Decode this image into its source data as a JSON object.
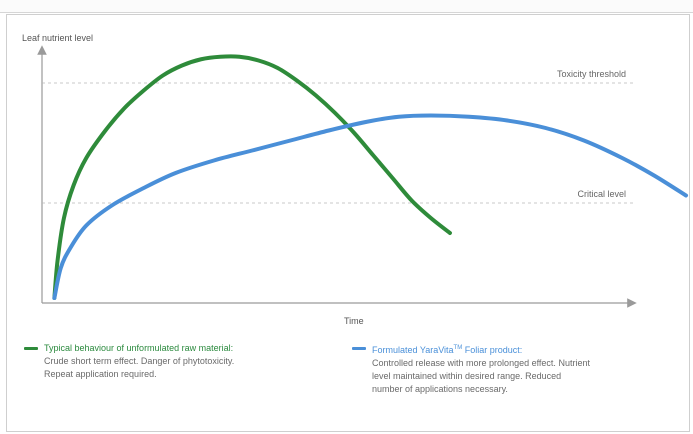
{
  "chart_data": {
    "type": "line",
    "ylabel": "Leaf nutrient level",
    "xlabel": "Time",
    "xlim": [
      0,
      100
    ],
    "ylim": [
      0,
      100
    ],
    "reference_lines": [
      {
        "label": "Toxicity threshold",
        "y": 86
      },
      {
        "label": "Critical level",
        "y": 38
      }
    ],
    "series": [
      {
        "name": "Typical behaviour of unformulated raw material:",
        "color": "#2e8b3a",
        "points": [
          [
            1,
            0
          ],
          [
            1.5,
            15
          ],
          [
            2.5,
            32
          ],
          [
            4,
            45
          ],
          [
            6,
            56
          ],
          [
            9,
            67
          ],
          [
            12,
            76
          ],
          [
            15,
            83
          ],
          [
            18,
            89
          ],
          [
            21,
            93
          ],
          [
            24,
            95.5
          ],
          [
            27,
            96.5
          ],
          [
            30,
            96.5
          ],
          [
            33,
            95
          ],
          [
            36,
            92
          ],
          [
            39,
            87
          ],
          [
            42,
            81
          ],
          [
            45,
            74
          ],
          [
            48,
            66
          ],
          [
            51,
            57
          ],
          [
            54,
            48
          ],
          [
            57,
            39
          ],
          [
            60,
            32
          ],
          [
            63,
            26
          ]
        ]
      },
      {
        "name": "Formulated YaraVita Foliar product:",
        "color": "#4a8fd8",
        "points": [
          [
            1,
            0
          ],
          [
            2,
            12
          ],
          [
            3.5,
            20
          ],
          [
            6,
            29
          ],
          [
            10,
            37
          ],
          [
            15,
            44
          ],
          [
            20,
            50
          ],
          [
            26,
            55
          ],
          [
            32,
            59
          ],
          [
            38,
            63
          ],
          [
            44,
            67
          ],
          [
            50,
            70.5
          ],
          [
            55,
            72.5
          ],
          [
            60,
            73
          ],
          [
            66,
            72.5
          ],
          [
            72,
            71
          ],
          [
            78,
            68
          ],
          [
            84,
            63
          ],
          [
            90,
            56
          ],
          [
            95,
            49
          ],
          [
            100,
            41
          ]
        ]
      }
    ],
    "legend": [
      {
        "title": "Typical behaviour of unformulated raw material:",
        "lines": [
          "Crude short term effect.  Danger of phytotoxicity.",
          "Repeat application required."
        ]
      },
      {
        "title": "Formulated YaraVita",
        "trademark": "TM",
        "title_suffix": " Foliar product:",
        "lines": [
          "Controlled release with more prolonged effect.  Nutrient",
          "level maintained within desired range.  Reduced",
          "number of applications necessary."
        ]
      }
    ]
  }
}
